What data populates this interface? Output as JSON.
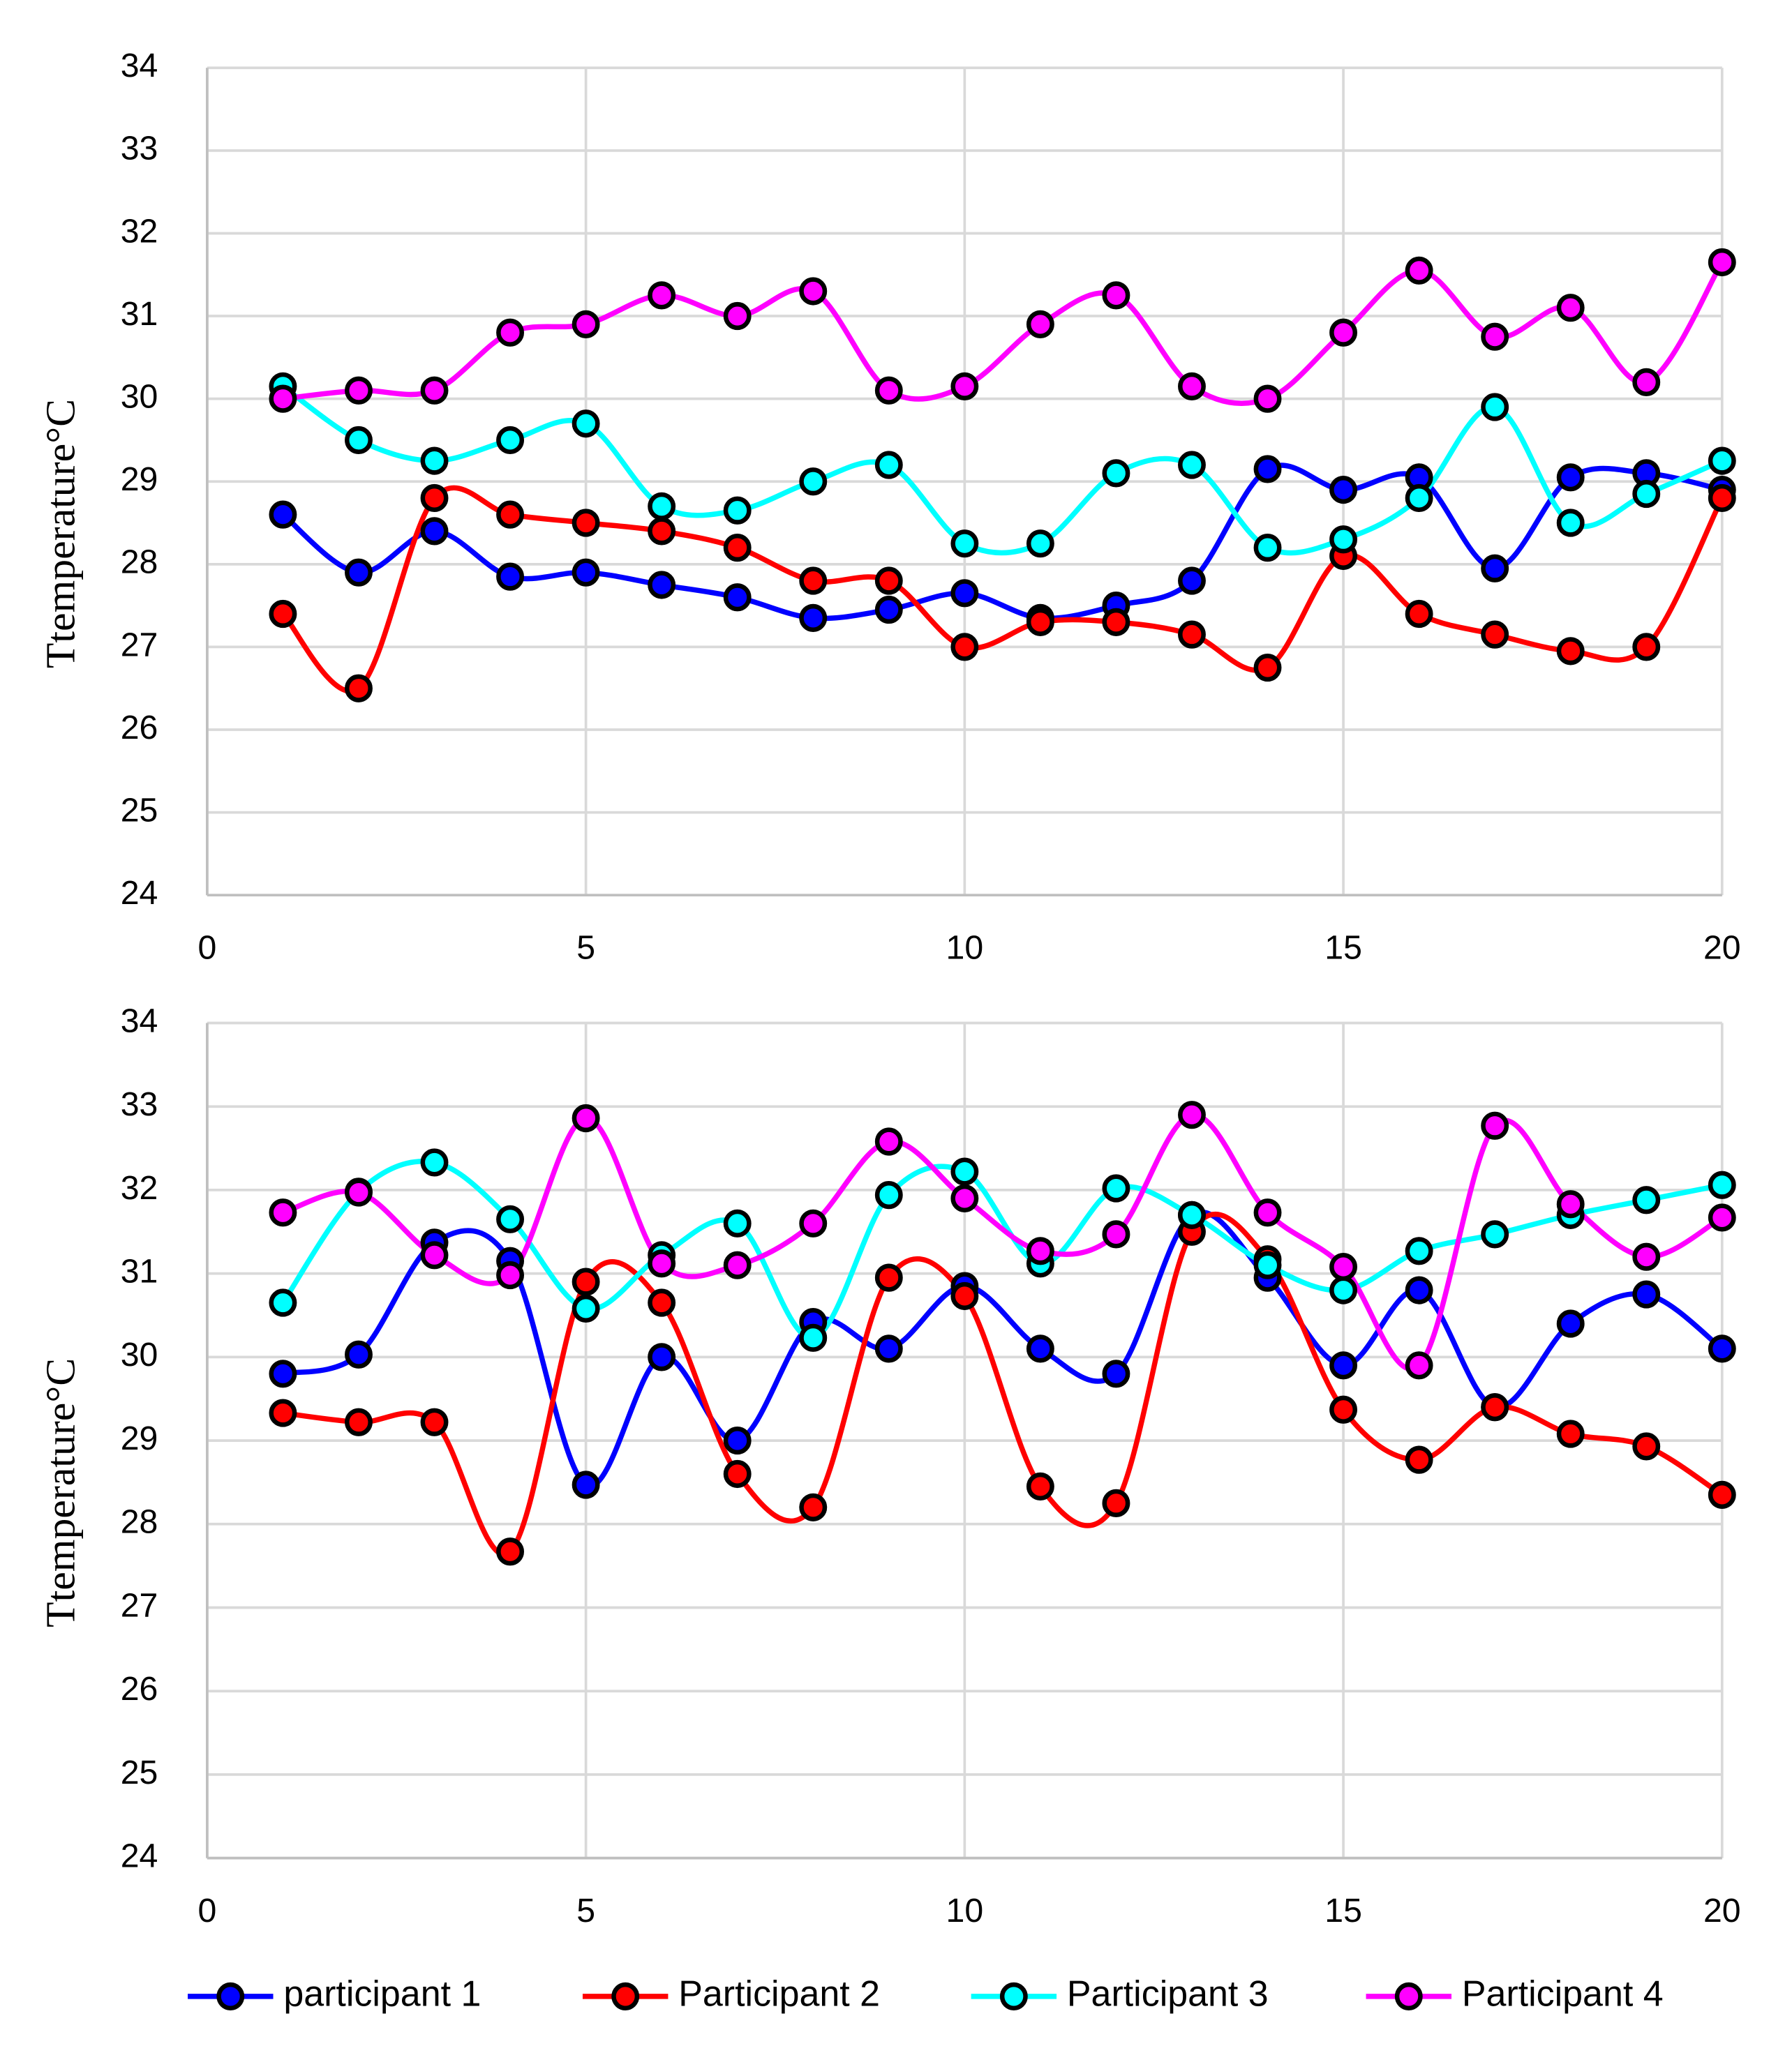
{
  "chart_data": [
    {
      "type": "line",
      "y_label": "Ttemperature°C",
      "grid": true,
      "smooth": true,
      "x": [
        1,
        2,
        3,
        4,
        5,
        6,
        7,
        8,
        9,
        10,
        11,
        12,
        13,
        14,
        15,
        16,
        17,
        18,
        19,
        20
      ],
      "xlim": [
        0,
        20
      ],
      "xticks": [
        0,
        5,
        10,
        15,
        20
      ],
      "ylim": [
        24,
        34
      ],
      "yticks": [
        24,
        25,
        26,
        27,
        28,
        29,
        30,
        31,
        32,
        33,
        34
      ],
      "series": [
        {
          "color": "#0000ff",
          "values": [
            28.6,
            27.9,
            28.4,
            27.85,
            27.9,
            27.75,
            27.6,
            27.35,
            27.45,
            27.65,
            27.35,
            27.5,
            27.8,
            29.15,
            28.9,
            29.05,
            27.95,
            29.05,
            29.1,
            28.9
          ]
        },
        {
          "color": "#ff0000",
          "values": [
            27.4,
            26.5,
            28.8,
            28.6,
            28.5,
            28.4,
            28.2,
            27.8,
            27.8,
            27.0,
            27.3,
            27.3,
            27.15,
            26.75,
            28.1,
            27.4,
            27.15,
            26.95,
            27.0,
            28.8
          ]
        },
        {
          "color": "#00ffff",
          "values": [
            30.15,
            29.5,
            29.25,
            29.5,
            29.7,
            28.7,
            28.65,
            29.0,
            29.2,
            28.25,
            28.25,
            29.1,
            29.2,
            28.2,
            28.3,
            28.8,
            29.9,
            28.5,
            28.85,
            29.25
          ]
        },
        {
          "color": "#ff00ff",
          "values": [
            30.0,
            30.1,
            30.1,
            30.8,
            30.9,
            31.25,
            31.0,
            31.3,
            30.1,
            30.15,
            30.9,
            31.25,
            30.15,
            30.0,
            30.8,
            31.55,
            30.75,
            31.1,
            30.2,
            31.65
          ]
        }
      ]
    },
    {
      "type": "line",
      "y_label": "Ttemperature°C",
      "grid": true,
      "smooth": true,
      "legend": "bottom",
      "x": [
        1,
        2,
        3,
        4,
        5,
        6,
        7,
        8,
        9,
        10,
        11,
        12,
        13,
        14,
        15,
        16,
        17,
        18,
        19,
        20
      ],
      "xlim": [
        0,
        20
      ],
      "xticks": [
        0,
        5,
        10,
        15,
        20
      ],
      "ylim": [
        24,
        34
      ],
      "yticks": [
        24,
        25,
        26,
        27,
        28,
        29,
        30,
        31,
        32,
        33,
        34
      ],
      "series": [
        {
          "name": "participant 1",
          "color": "#0000ff",
          "values": [
            29.8,
            30.03,
            31.37,
            31.15,
            28.47,
            30.0,
            29.0,
            30.42,
            30.1,
            30.85,
            30.1,
            29.8,
            31.7,
            30.95,
            29.9,
            30.8,
            29.4,
            30.4,
            30.75,
            30.1
          ]
        },
        {
          "name": "Participant 2",
          "color": "#ff0000",
          "values": [
            29.33,
            29.22,
            29.22,
            27.67,
            30.9,
            30.65,
            28.6,
            28.2,
            30.95,
            30.73,
            28.45,
            28.25,
            31.5,
            31.17,
            29.37,
            28.77,
            29.4,
            29.08,
            28.93,
            28.35
          ]
        },
        {
          "name": "Participant 3",
          "color": "#00ffff",
          "values": [
            30.65,
            31.98,
            32.33,
            31.65,
            30.58,
            31.22,
            31.6,
            30.23,
            31.94,
            32.22,
            31.12,
            32.02,
            31.7,
            31.1,
            30.8,
            31.27,
            31.47,
            31.7,
            31.88,
            32.06
          ]
        },
        {
          "name": "Participant 4",
          "color": "#ff00ff",
          "values": [
            31.73,
            31.97,
            31.22,
            30.98,
            32.86,
            31.12,
            31.1,
            31.6,
            32.58,
            31.9,
            31.27,
            31.47,
            32.9,
            31.73,
            31.08,
            29.9,
            32.77,
            31.83,
            31.2,
            31.67
          ]
        }
      ]
    }
  ]
}
